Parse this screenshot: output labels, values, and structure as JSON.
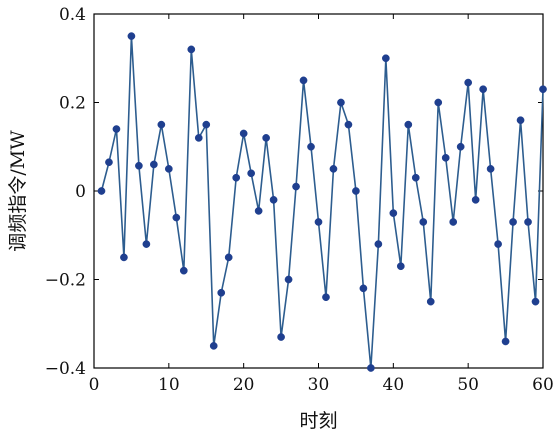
{
  "chart_data": {
    "type": "line",
    "xlabel": "时刻",
    "ylabel": "调频指令/MW",
    "xlim": [
      0,
      60
    ],
    "ylim": [
      -0.4,
      0.4
    ],
    "x_ticks": [
      0,
      10,
      20,
      30,
      40,
      50,
      60
    ],
    "y_ticks": [
      -0.4,
      -0.2,
      0,
      0.2,
      0.4
    ],
    "x_tick_labels": [
      "0",
      "10",
      "20",
      "30",
      "40",
      "50",
      "60"
    ],
    "y_tick_labels": [
      "−0.4",
      "−0.2",
      "0",
      "0.2",
      "0.4"
    ],
    "grid": false,
    "colors": {
      "series": "#2d5d8f",
      "marker": "#1f3f8f",
      "axis": "#000000"
    },
    "series": [
      {
        "x": [
          1,
          2,
          3,
          4,
          5,
          6,
          7,
          8,
          9,
          10,
          11,
          12,
          13,
          14,
          15,
          16,
          17,
          18,
          19,
          20,
          21,
          22,
          23,
          24,
          25,
          26,
          27,
          28,
          29,
          30,
          31,
          32,
          33,
          34,
          35,
          36,
          37,
          38,
          39,
          40,
          41,
          42,
          43,
          44,
          45,
          46,
          47,
          48,
          49,
          50,
          51,
          52,
          53,
          54,
          55,
          56,
          57,
          58,
          59,
          60
        ],
        "values": [
          0.0,
          0.065,
          0.14,
          -0.15,
          0.35,
          0.057,
          -0.12,
          0.06,
          0.15,
          0.05,
          -0.06,
          -0.18,
          0.32,
          0.12,
          0.15,
          -0.35,
          -0.23,
          -0.15,
          0.03,
          0.13,
          0.04,
          -0.045,
          0.12,
          -0.02,
          -0.33,
          -0.2,
          0.01,
          0.25,
          0.1,
          -0.07,
          -0.24,
          0.05,
          0.2,
          0.15,
          0.0,
          -0.22,
          -0.4,
          -0.12,
          0.3,
          -0.05,
          -0.17,
          0.15,
          0.03,
          -0.07,
          -0.25,
          0.2,
          0.075,
          -0.07,
          0.1,
          0.245,
          -0.02,
          0.23,
          0.05,
          -0.12,
          -0.34,
          -0.07,
          0.16,
          -0.07,
          -0.25,
          0.23
        ]
      }
    ]
  }
}
